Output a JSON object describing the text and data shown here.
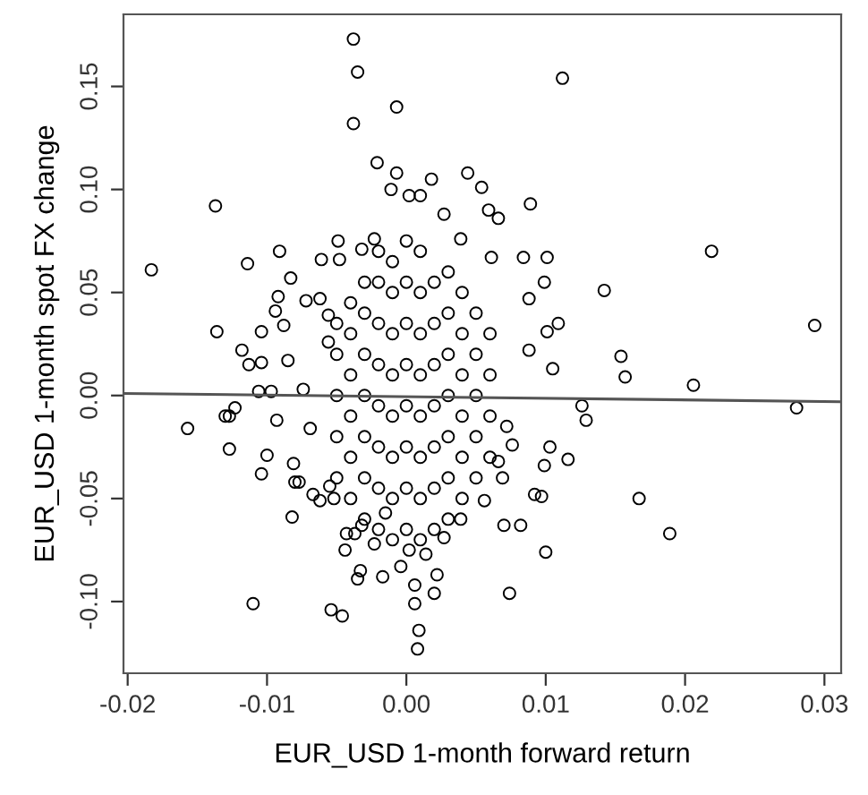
{
  "chart_data": {
    "type": "scatter",
    "xlabel": "EUR_USD 1-month forward return",
    "ylabel": "EUR_USD 1-month spot FX change",
    "xlim": [
      -0.0203,
      0.0312
    ],
    "ylim": [
      -0.1348,
      0.185
    ],
    "xticks": [
      {
        "value": -0.02,
        "label": "-0.02"
      },
      {
        "value": -0.01,
        "label": "-0.01"
      },
      {
        "value": 0,
        "label": "0.00"
      },
      {
        "value": 0.01,
        "label": "0.01"
      },
      {
        "value": 0.02,
        "label": "0.02"
      },
      {
        "value": 0.03,
        "label": "0.03"
      }
    ],
    "yticks": [
      {
        "value": -0.1,
        "label": "-0.10"
      },
      {
        "value": -0.05,
        "label": "-0.05"
      },
      {
        "value": 0,
        "label": "0.00"
      },
      {
        "value": 0.05,
        "label": "0.05"
      },
      {
        "value": 0.1,
        "label": "0.10"
      },
      {
        "value": 0.15,
        "label": "0.15"
      }
    ],
    "grid": false,
    "series": [
      {
        "marker": "circle",
        "color": "#000000",
        "x": [
          -0.0183,
          -0.0157,
          -0.0137,
          -0.0136,
          -0.013,
          -0.0127,
          -0.0127,
          -0.0123,
          -0.0118,
          -0.0114,
          -0.0113,
          -0.011,
          -0.0106,
          -0.0104,
          -0.0104,
          -0.0104,
          -0.01,
          -0.0097,
          -0.0094,
          -0.0092,
          -0.0091,
          -0.0093,
          -0.0088,
          -0.0085,
          -0.0083,
          -0.0082,
          -0.0081,
          -0.008,
          -0.0077,
          -0.0074,
          -0.0072,
          -0.0069,
          -0.0067,
          -0.0062,
          -0.0061,
          -0.0054,
          -0.0049,
          -0.0046,
          -0.0044,
          -0.0043,
          -0.0038,
          -0.0035,
          -0.0038,
          -0.0035,
          -0.0033,
          -0.0021,
          -0.0017,
          -0.0007,
          -0.0007,
          -0.0004,
          0.0006,
          0.0006,
          0.0009,
          0.0008,
          0.002,
          0.0022,
          0.0018,
          0.0044,
          0.0054,
          0.0059,
          0.0066,
          0.0061,
          0.0074,
          0.0089,
          0.0084,
          0.0088,
          0.0088,
          0.0101,
          0.0099,
          0.0101,
          0.0109,
          0.0105,
          0.0099,
          0.01,
          0.0103,
          0.0097,
          0.0092,
          0.0116,
          0.0112,
          0.0126,
          0.0129,
          0.0142,
          0.0154,
          0.0157,
          0.0167,
          0.0189,
          0.0206,
          0.0219,
          0.028,
          0.0293,
          0.007,
          0.0082,
          0.0072,
          0.0076,
          0.0069,
          0.0066,
          -0.0032,
          -0.0037,
          -0.0052,
          -0.0055,
          -0.0056,
          -0.0056,
          -0.0062,
          -0.0032,
          -0.0048,
          -0.0023,
          -0.0011,
          0.0002,
          0.001,
          0.0027,
          0.0039,
          0.0002,
          0.0014,
          0.0027,
          0.0039,
          0.0056,
          -0.0023,
          -0.0015,
          -0.005,
          -0.005,
          -0.005,
          -0.005,
          -0.005,
          -0.004,
          -0.004,
          -0.004,
          -0.004,
          -0.004,
          -0.004,
          -0.003,
          -0.003,
          -0.003,
          -0.003,
          -0.003,
          -0.003,
          -0.003,
          -0.002,
          -0.002,
          -0.002,
          -0.002,
          -0.002,
          -0.002,
          -0.002,
          -0.002,
          -0.001,
          -0.001,
          -0.001,
          -0.001,
          -0.001,
          -0.001,
          -0.001,
          -0.001,
          0,
          0,
          0,
          0,
          0,
          0,
          0,
          0,
          0.001,
          0.001,
          0.001,
          0.001,
          0.001,
          0.001,
          0.001,
          0.001,
          0.002,
          0.002,
          0.002,
          0.002,
          0.002,
          0.002,
          0.002,
          0.003,
          0.003,
          0.003,
          0.003,
          0.003,
          0.003,
          0.003,
          0.004,
          0.004,
          0.004,
          0.004,
          0.004,
          0.004,
          0.005,
          0.005,
          0.005,
          0.005,
          0.005,
          0.006,
          0.006,
          0.006,
          0.006
        ],
        "values": [
          0.061,
          -0.016,
          0.092,
          0.031,
          -0.01,
          -0.01,
          -0.026,
          -0.006,
          0.022,
          0.064,
          0.015,
          -0.101,
          0.002,
          0.031,
          0.016,
          -0.038,
          -0.029,
          0.002,
          0.041,
          0.048,
          0.07,
          -0.012,
          0.034,
          0.017,
          0.057,
          -0.059,
          -0.033,
          -0.042,
          -0.042,
          0.003,
          0.046,
          -0.016,
          -0.048,
          -0.051,
          0.066,
          -0.104,
          0.075,
          -0.107,
          -0.075,
          -0.067,
          0.173,
          0.157,
          0.132,
          -0.089,
          -0.085,
          0.113,
          -0.088,
          0.14,
          0.108,
          -0.083,
          -0.092,
          -0.101,
          -0.114,
          -0.123,
          -0.096,
          -0.087,
          0.105,
          0.108,
          0.101,
          0.09,
          0.086,
          0.067,
          -0.096,
          0.093,
          0.067,
          0.047,
          0.022,
          0.067,
          0.055,
          0.031,
          0.035,
          0.013,
          -0.034,
          -0.076,
          -0.025,
          -0.049,
          -0.048,
          -0.031,
          0.154,
          -0.005,
          -0.012,
          0.051,
          0.019,
          0.009,
          -0.05,
          -0.067,
          0.005,
          0.07,
          -0.006,
          0.034,
          -0.063,
          -0.063,
          -0.015,
          -0.024,
          -0.04,
          -0.032,
          -0.063,
          -0.067,
          -0.05,
          -0.044,
          0.026,
          0.039,
          0.047,
          0.071,
          0.066,
          0.076,
          0.1,
          0.097,
          0.097,
          0.088,
          0.076,
          -0.075,
          -0.077,
          -0.069,
          -0.06,
          -0.051,
          -0.072,
          -0.057,
          -0.04,
          -0.02,
          0,
          0.02,
          0.035,
          -0.05,
          -0.03,
          -0.01,
          0.01,
          0.03,
          0.045,
          -0.06,
          -0.04,
          -0.02,
          0,
          0.02,
          0.04,
          0.055,
          -0.065,
          -0.045,
          -0.025,
          -0.005,
          0.015,
          0.035,
          0.055,
          0.07,
          -0.07,
          -0.05,
          -0.03,
          -0.01,
          0.01,
          0.03,
          0.05,
          0.065,
          -0.065,
          -0.045,
          -0.025,
          -0.005,
          0.015,
          0.035,
          0.055,
          0.075,
          -0.07,
          -0.05,
          -0.03,
          -0.01,
          0.01,
          0.03,
          0.05,
          0.07,
          -0.065,
          -0.045,
          -0.025,
          -0.005,
          0.015,
          0.035,
          0.055,
          -0.06,
          -0.04,
          -0.02,
          0,
          0.02,
          0.04,
          0.06,
          -0.05,
          -0.03,
          -0.01,
          0.01,
          0.03,
          0.05,
          -0.04,
          -0.02,
          0,
          0.02,
          0.04,
          -0.03,
          -0.01,
          0.01,
          0.03
        ]
      },
      {
        "type": "line",
        "color": "#555555",
        "x": [
          -0.0203,
          0.0312
        ],
        "values": [
          0.001,
          -0.003
        ]
      }
    ]
  }
}
